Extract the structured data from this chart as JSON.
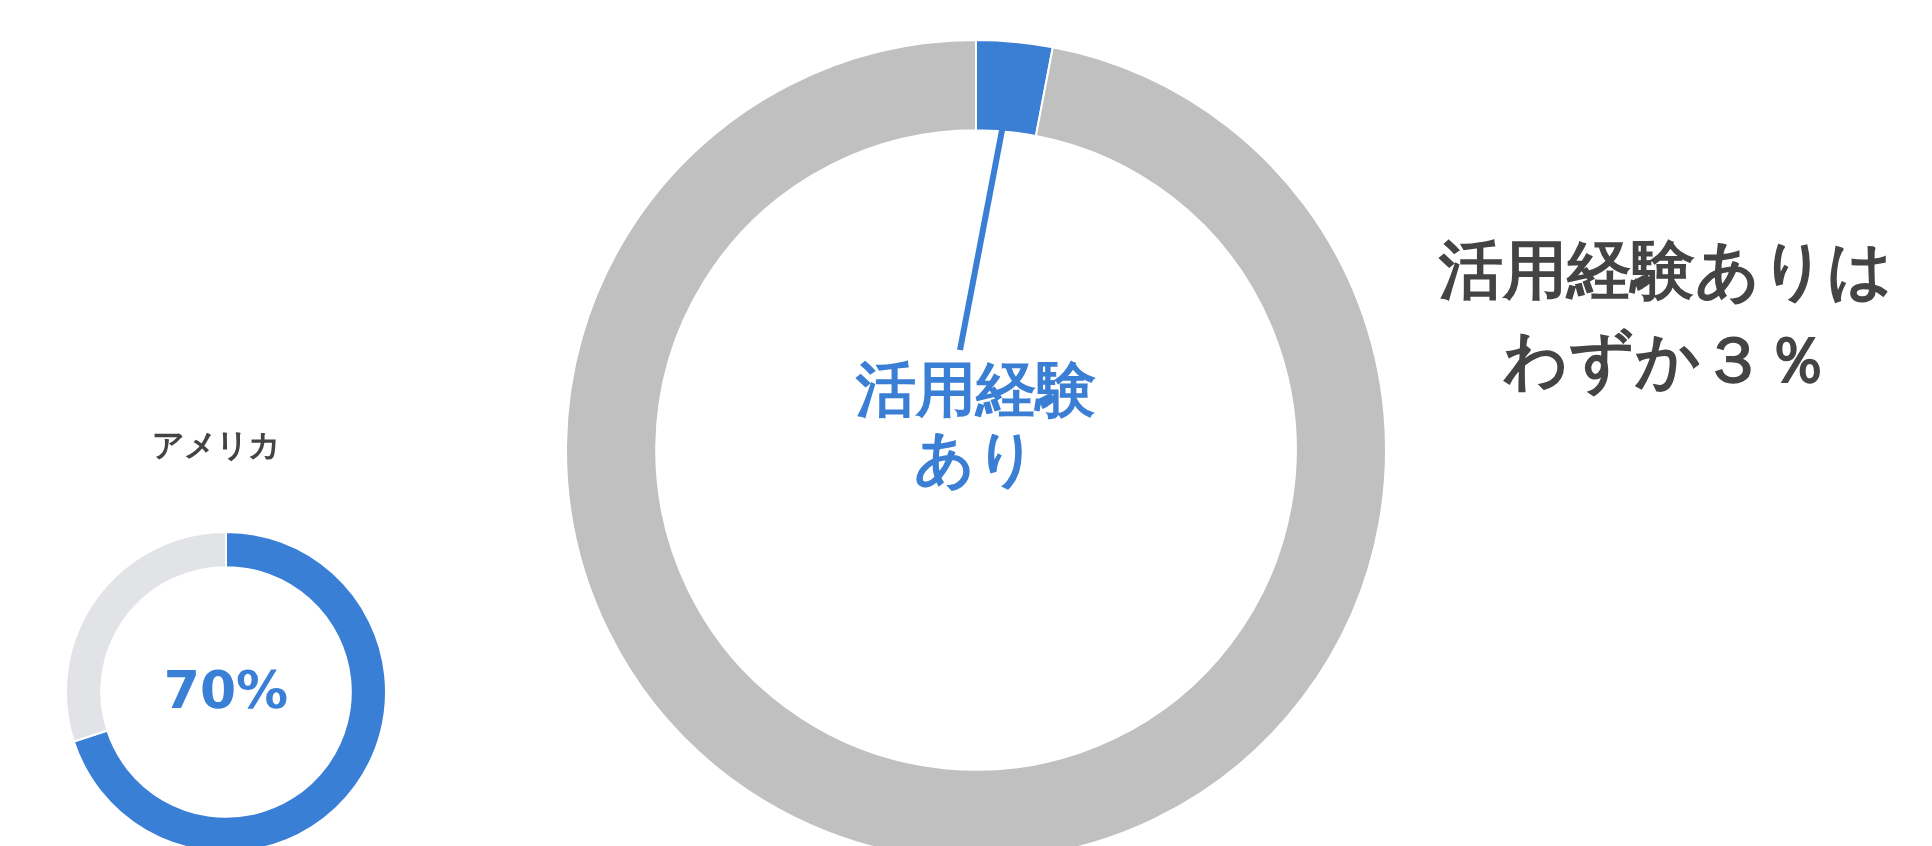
{
  "chart_data": [
    {
      "type": "donut",
      "title": "アメリカ",
      "categories": [
        null,
        null
      ],
      "values": [
        70,
        30
      ],
      "colors": [
        "#3a7fd6",
        "#e2e3e7"
      ],
      "value_labels": [
        "70%",
        null
      ],
      "legend": false
    },
    {
      "type": "donut",
      "categories": [
        "活用経験あり",
        null
      ],
      "values": [
        3,
        97
      ],
      "colors": [
        "#3b7fd4",
        "#c0c0c0"
      ],
      "legend": false,
      "annotations": [
        "活用経験ありは",
        "わずか３％"
      ]
    }
  ]
}
